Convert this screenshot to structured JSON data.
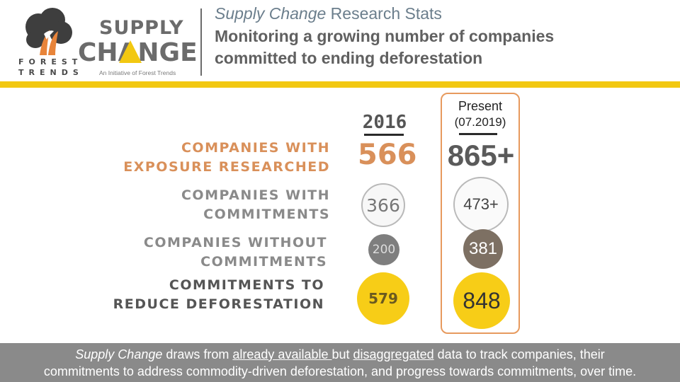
{
  "header": {
    "logo_forest": "FOREST",
    "logo_trends": "TRENDS",
    "logo_supply": "SUPPLY",
    "logo_change": "CHANGE",
    "logo_tagline": "An Initiative of Forest Trends",
    "title_italic": "Supply Change",
    "title_rest": " Research Stats",
    "subtitle": "Monitoring a growing number of companies committed to ending deforestation"
  },
  "rows": [
    {
      "label1": "COMPANIES WITH",
      "label2": "EXPOSURE RESEARCHED"
    },
    {
      "label1": "COMPANIES WITH",
      "label2": "COMMITMENTS"
    },
    {
      "label1": "COMPANIES WITHOUT",
      "label2": "COMMITMENTS"
    },
    {
      "label1": "COMMITMENTS TO",
      "label2": "REDUCE DEFORESTATION"
    }
  ],
  "col_2016": {
    "header": "2016",
    "values": [
      "566",
      "366",
      "200",
      "579"
    ]
  },
  "col_present": {
    "header": "Present",
    "date": "(07.2019)",
    "values": [
      "865+",
      "473+",
      "381",
      "848"
    ]
  },
  "footer": {
    "p1_italic": "Supply Change",
    "p2": " draws from ",
    "p3_u": "already available ",
    "p4": "but ",
    "p5_u": "disaggregated",
    "p6": " data to track companies, their",
    "line2": "commitments to address commodity-driven deforestation, and progress towards commitments, over time."
  },
  "colors": {
    "gold": "#f2c811",
    "orange": "#d9905a",
    "grey": "#8a8a8a",
    "brown": "#7d7063"
  }
}
